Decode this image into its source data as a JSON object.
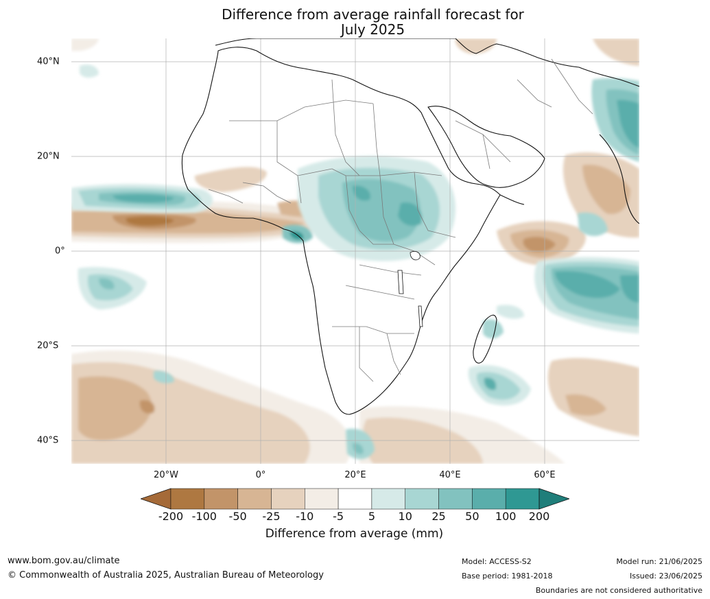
{
  "title_line1": "Difference from average rainfall forecast for",
  "title_line2": "July 2025",
  "lat_labels": [
    "40°N",
    "20°N",
    "0°",
    "20°S",
    "40°S"
  ],
  "lon_labels": [
    "20°W",
    "0°",
    "20°E",
    "40°E",
    "60°E"
  ],
  "colorbar": {
    "ticks": [
      "-200",
      "-100",
      "-50",
      "-25",
      "-10",
      "-5",
      "5",
      "10",
      "25",
      "50",
      "100",
      "200"
    ],
    "colors": [
      "#a56a38",
      "#ae7841",
      "#c29469",
      "#d7b594",
      "#e6d2be",
      "#f3ede6",
      "#ffffff",
      "#d6eae8",
      "#a8d6d3",
      "#82c2bf",
      "#5aaeab",
      "#2f9893",
      "#1f7e7a"
    ],
    "label": "Difference from average (mm)"
  },
  "footer": {
    "website": "www.bom.gov.au/climate",
    "copyright": "© Commonwealth of Australia 2025, Australian Bureau of Meteorology",
    "model": "Model: ACCESS-S2",
    "base_period": "Base period: 1981-2018",
    "model_run": "Model run: 21/06/2025",
    "issued": "Issued: 23/06/2025",
    "disclaimer": "Boundaries are not considered authoritative"
  }
}
